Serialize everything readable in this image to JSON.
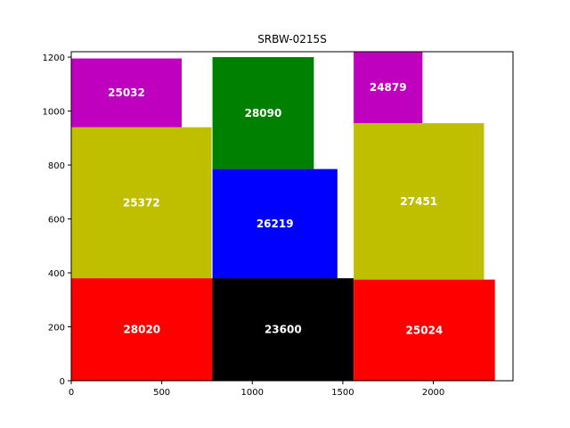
{
  "chart_data": {
    "type": "treemap-rectangles",
    "title": "SRBW-0215S",
    "xlabel": "",
    "ylabel": "",
    "xlim": [
      0,
      2440
    ],
    "ylim": [
      0,
      1220
    ],
    "xticks": [
      0,
      500,
      1000,
      1500,
      2000
    ],
    "yticks": [
      0,
      200,
      400,
      600,
      800,
      1000,
      1200
    ],
    "grid": false,
    "rectangles": [
      {
        "label": "28020",
        "x0": 0,
        "y0": 0,
        "x1": 780,
        "y1": 380,
        "color": "#ff0000"
      },
      {
        "label": "23600",
        "x0": 780,
        "y0": 0,
        "x1": 1560,
        "y1": 380,
        "color": "#000000"
      },
      {
        "label": "25024",
        "x0": 1560,
        "y0": 0,
        "x1": 2340,
        "y1": 375,
        "color": "#ff0000"
      },
      {
        "label": "25372",
        "x0": 0,
        "y0": 380,
        "x1": 775,
        "y1": 940,
        "color": "#bfbf00"
      },
      {
        "label": "26219",
        "x0": 780,
        "y0": 380,
        "x1": 1470,
        "y1": 785,
        "color": "#0000ff"
      },
      {
        "label": "27451",
        "x0": 1560,
        "y0": 375,
        "x1": 2280,
        "y1": 955,
        "color": "#bfbf00"
      },
      {
        "label": "25032",
        "x0": 0,
        "y0": 940,
        "x1": 610,
        "y1": 1195,
        "color": "#bf00bf"
      },
      {
        "label": "28090",
        "x0": 780,
        "y0": 785,
        "x1": 1340,
        "y1": 1200,
        "color": "#008000"
      },
      {
        "label": "24879",
        "x0": 1560,
        "y0": 955,
        "x1": 1940,
        "y1": 1220,
        "color": "#bf00bf"
      }
    ]
  }
}
